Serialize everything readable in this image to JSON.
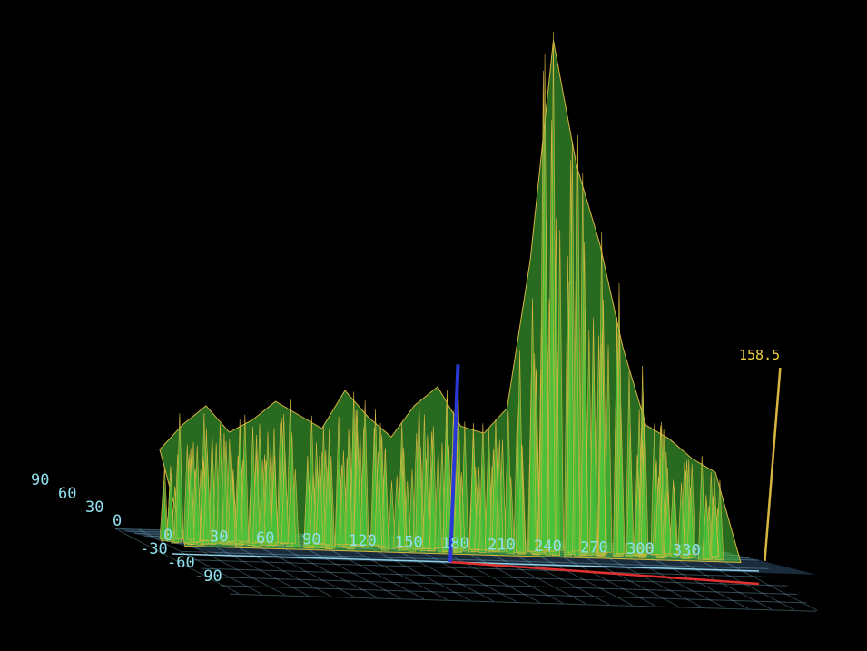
{
  "chart_data": {
    "type": "surface3d",
    "x_ticks": [
      "0",
      "30",
      "60",
      "90",
      "120",
      "150",
      "180",
      "210",
      "240",
      "270",
      "300",
      "330"
    ],
    "y_ticks": [
      "90",
      "60",
      "30",
      "0",
      "-30",
      "-60",
      "-90"
    ],
    "z_max_label": "158.5",
    "xlim": [
      0,
      360
    ],
    "ylim": [
      -90,
      90
    ],
    "zlim": [
      0,
      158.5
    ],
    "grid": true,
    "profile": {
      "x": [
        0,
        15,
        30,
        45,
        60,
        75,
        90,
        105,
        120,
        135,
        150,
        165,
        180,
        195,
        210,
        225,
        240,
        255,
        270,
        285,
        300,
        315,
        330,
        345,
        360
      ],
      "z": [
        28,
        36,
        42,
        34,
        38,
        44,
        40,
        36,
        48,
        40,
        34,
        44,
        50,
        38,
        36,
        44,
        90,
        158.5,
        120,
        96,
        64,
        40,
        36,
        30,
        26
      ]
    },
    "colors": {
      "surface": "#49c23a",
      "surface_edge": "#d8b540",
      "grid": "#8fd0e6",
      "floor": "#1f3346",
      "x_axis": "#e03030",
      "z_axis": "#2a38d8",
      "z_scale": "#d8b540",
      "background": "#000000"
    }
  }
}
